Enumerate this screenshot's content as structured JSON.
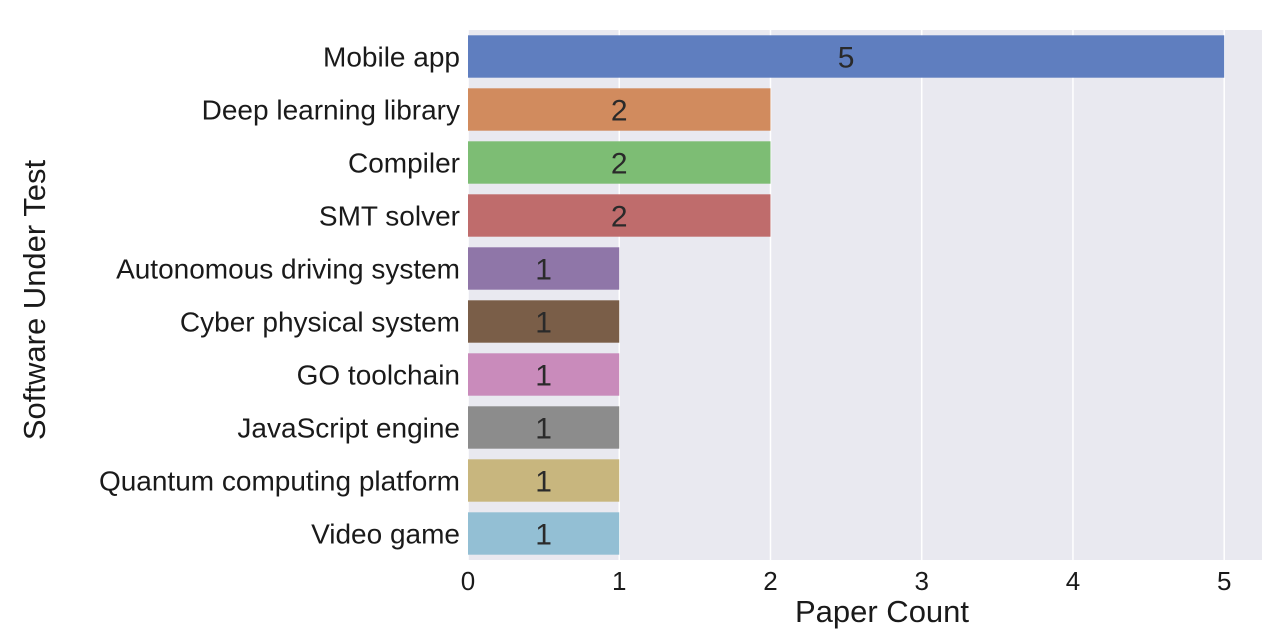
{
  "chart_data": {
    "type": "bar",
    "orientation": "horizontal",
    "title": "",
    "xlabel": "Paper Count",
    "ylabel": "Software Under Test",
    "xlim": [
      0,
      5.25
    ],
    "xticks": [
      0,
      1,
      2,
      3,
      4,
      5
    ],
    "grid": true,
    "legend": "none",
    "categories": [
      "Mobile app",
      "Deep learning library",
      "Compiler",
      "SMT solver",
      "Autonomous driving system",
      "Cyber physical system",
      "GO toolchain",
      "JavaScript engine",
      "Quantum computing platform",
      "Video game"
    ],
    "values": [
      5,
      2,
      2,
      2,
      1,
      1,
      1,
      1,
      1,
      1
    ],
    "colors": [
      "#5f7ebf",
      "#d18b5e",
      "#7dbd74",
      "#bf6c6c",
      "#8f76a8",
      "#7a5e48",
      "#c98bbb",
      "#8c8c8c",
      "#c8b67e",
      "#93bfd4"
    ],
    "plot_background": "#e9e9f0",
    "grid_color": "#ffffff"
  }
}
